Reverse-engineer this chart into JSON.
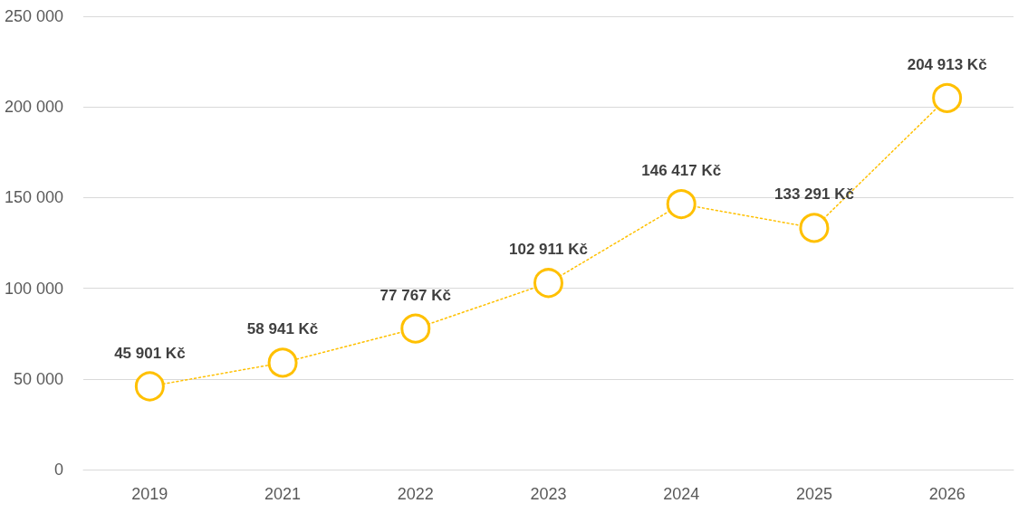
{
  "chart_data": {
    "type": "line",
    "categories": [
      "2019",
      "2021",
      "2022",
      "2023",
      "2024",
      "2025",
      "2026"
    ],
    "series": [
      {
        "color": "#ffc000",
        "values": [
          45901,
          58941,
          77767,
          102911,
          146417,
          133291,
          204913
        ],
        "value_labels": [
          "45 901 Kč",
          "58 941 Kč",
          "77 767 Kč",
          "102 911 Kč",
          "146 417 Kč",
          "133 291 Kč",
          "204 913 Kč"
        ]
      }
    ],
    "ylim": [
      0,
      250000
    ],
    "yticks": [
      {
        "value": 0,
        "label": "0"
      },
      {
        "value": 50000,
        "label": "50 000"
      },
      {
        "value": 100000,
        "label": "100 000"
      },
      {
        "value": 150000,
        "label": "150 000"
      },
      {
        "value": 200000,
        "label": "200 000"
      },
      {
        "value": 250000,
        "label": "250 000"
      }
    ],
    "grid": "y",
    "marker": "circle",
    "line_style": "dotted"
  }
}
